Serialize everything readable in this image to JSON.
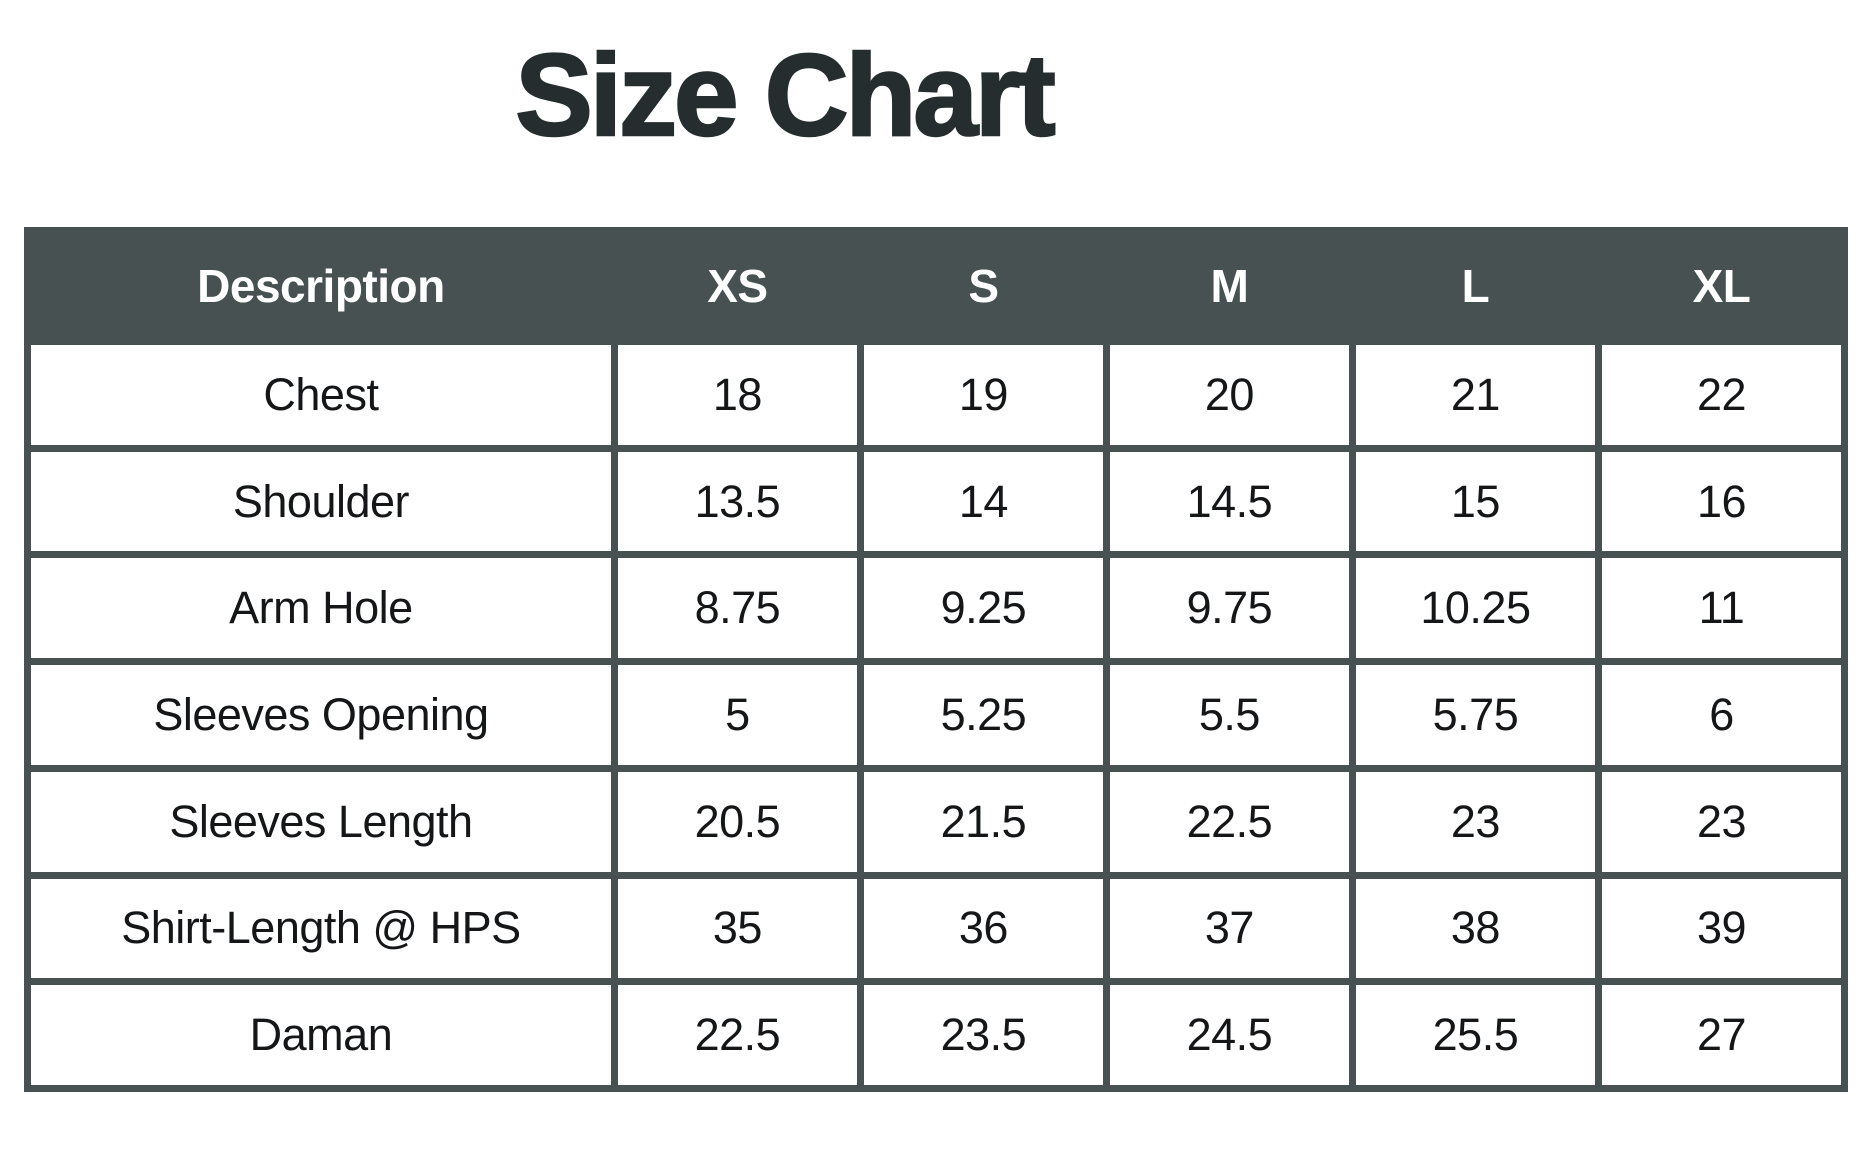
{
  "page_title": "Size Chart",
  "colors": {
    "background": "#ffffff",
    "header_bg": "#475152",
    "border": "#475152",
    "header_text": "#ffffff",
    "body_text": "#141618",
    "title_text": "#262d2e"
  },
  "chart_data": {
    "type": "table",
    "title": "Size Chart",
    "columns": [
      "Description",
      "XS",
      "S",
      "M",
      "L",
      "XL"
    ],
    "rows": [
      {
        "label": "Chest",
        "values": [
          "18",
          "19",
          "20",
          "21",
          "22"
        ]
      },
      {
        "label": "Shoulder",
        "values": [
          "13.5",
          "14",
          "14.5",
          "15",
          "16"
        ]
      },
      {
        "label": "Arm Hole",
        "values": [
          "8.75",
          "9.25",
          "9.75",
          "10.25",
          "11"
        ]
      },
      {
        "label": "Sleeves Opening",
        "values": [
          "5",
          "5.25",
          "5.5",
          "5.75",
          "6"
        ]
      },
      {
        "label": "Sleeves Length",
        "values": [
          "20.5",
          "21.5",
          "22.5",
          "23",
          "23"
        ]
      },
      {
        "label": "Shirt-Length @ HPS",
        "values": [
          "35",
          "36",
          "37",
          "38",
          "39"
        ]
      },
      {
        "label": "Daman",
        "values": [
          "22.5",
          "23.5",
          "24.5",
          "25.5",
          "27"
        ]
      }
    ]
  }
}
